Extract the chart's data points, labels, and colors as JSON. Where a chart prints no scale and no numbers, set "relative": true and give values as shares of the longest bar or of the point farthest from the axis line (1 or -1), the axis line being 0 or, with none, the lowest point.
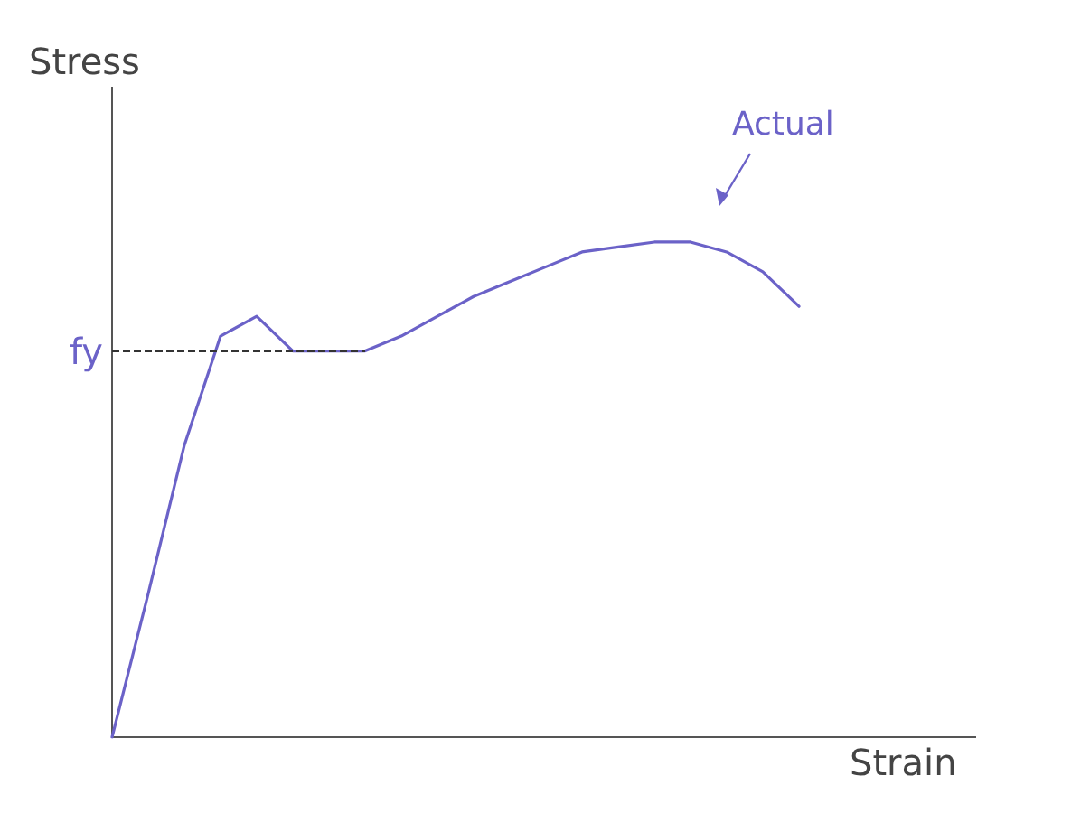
{
  "chart_data": {
    "type": "line",
    "relative": true,
    "xlabel": "Strain",
    "ylabel": "Stress",
    "categories": [
      null,
      null,
      null,
      null,
      null,
      null,
      null,
      null,
      null,
      null,
      null,
      null,
      null,
      null,
      null,
      null,
      null,
      null,
      null,
      null
    ],
    "series": [
      {
        "color": "#6b62c8",
        "values": [
          0,
          0.29,
          0.59,
          0.81,
          0.85,
          0.78,
          0.78,
          0.78,
          0.81,
          0.85,
          0.89,
          0.92,
          0.95,
          0.98,
          0.99,
          1,
          1,
          0.98,
          0.94,
          0.87
        ]
      }
    ],
    "ref_lines": [
      {
        "axis": "y",
        "value": 0.78,
        "label": "fy",
        "color": "#333333",
        "line_style": "dashed"
      }
    ],
    "annotations": [
      "Actual"
    ],
    "marker": "none",
    "grid": false,
    "line_style": "solid"
  }
}
